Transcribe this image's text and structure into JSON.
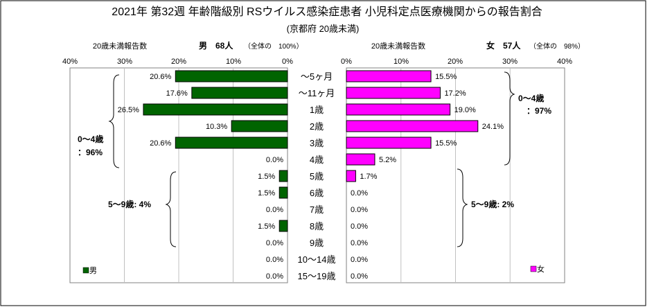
{
  "chart_data": {
    "type": "bar",
    "title": "2021年 第32週 年齢階級別 RSウイルス感染症患者 小児科定点医療機関からの報告割合",
    "subtitle": "(京都府 20歳未満)",
    "categories": [
      "～5ヶ月",
      "～11ヶ月",
      "1歳",
      "2歳",
      "3歳",
      "4歳",
      "5歳",
      "6歳",
      "7歳",
      "8歳",
      "9歳",
      "10～14歳",
      "15～19歳"
    ],
    "xlim": [
      0,
      40
    ],
    "x_ticks": [
      "40%",
      "30%",
      "20%",
      "10%",
      "0%"
    ],
    "x_ticks_right": [
      "0%",
      "10%",
      "20%",
      "30%",
      "40%"
    ],
    "series": [
      {
        "name": "男",
        "side": "left",
        "color": "#006400",
        "axis_title": "20歳未満報告数",
        "header": "男　68人",
        "header_note": "（全体の　100%）",
        "values": [
          20.6,
          17.6,
          26.5,
          10.3,
          20.6,
          0.0,
          1.5,
          1.5,
          0.0,
          1.5,
          0.0,
          0.0,
          0.0
        ],
        "labels": [
          "20.6%",
          "17.6%",
          "26.5%",
          "10.3%",
          "20.6%",
          "0.0%",
          "1.5%",
          "1.5%",
          "0.0%",
          "1.5%",
          "0.0%",
          "0.0%",
          "0.0%"
        ],
        "legend": "男",
        "groups": [
          {
            "line1": "0～4歳",
            "line2": "：96%"
          },
          {
            "line1": "5～9歳: 4%",
            "line2": ""
          }
        ]
      },
      {
        "name": "女",
        "side": "right",
        "color": "#ff00ff",
        "axis_title": "20歳未満報告数",
        "header": "女　57人",
        "header_note": "（全体の　98%）",
        "values": [
          15.5,
          17.2,
          19.0,
          24.1,
          15.5,
          5.2,
          1.7,
          0.0,
          0.0,
          0.0,
          0.0,
          0.0,
          0.0
        ],
        "labels": [
          "15.5%",
          "17.2%",
          "19.0%",
          "24.1%",
          "15.5%",
          "5.2%",
          "1.7%",
          "0.0%",
          "0.0%",
          "0.0%",
          "0.0%",
          "0.0%",
          "0.0%"
        ],
        "legend": "女",
        "groups": [
          {
            "line1": "0～4歳",
            "line2": "：97%"
          },
          {
            "line1": "5～9歳: 2%",
            "line2": ""
          }
        ]
      }
    ]
  }
}
